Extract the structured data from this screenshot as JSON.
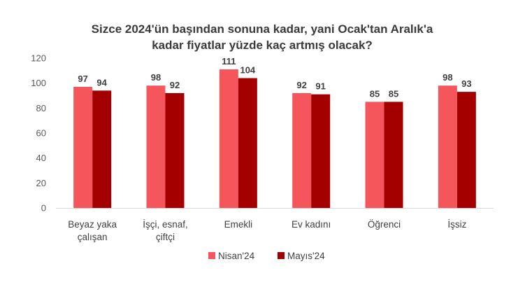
{
  "chart_data": {
    "type": "bar",
    "title_lines": [
      "Sizce 2024'ün başından sonuna kadar, yani Ocak'tan Aralık'a",
      "kadar fiyatlar yüzde kaç artmış olacak?"
    ],
    "categories": [
      [
        "Beyaz yaka",
        "çalışan"
      ],
      [
        "İşçi, esnaf,",
        "çiftçi"
      ],
      [
        "Emekli"
      ],
      [
        "Ev kadını"
      ],
      [
        "Öğrenci"
      ],
      [
        "İşsiz"
      ]
    ],
    "series": [
      {
        "name": "Nisan'24",
        "color": "#f4565c",
        "values": [
          97,
          98,
          111,
          92,
          85,
          98
        ]
      },
      {
        "name": "Mayıs'24",
        "color": "#a50000",
        "values": [
          94,
          92,
          104,
          91,
          85,
          93
        ]
      }
    ],
    "ylim": [
      0,
      120
    ],
    "yticks": [
      0,
      20,
      40,
      60,
      80,
      100,
      120
    ],
    "grid": false,
    "legend": "bottom"
  }
}
